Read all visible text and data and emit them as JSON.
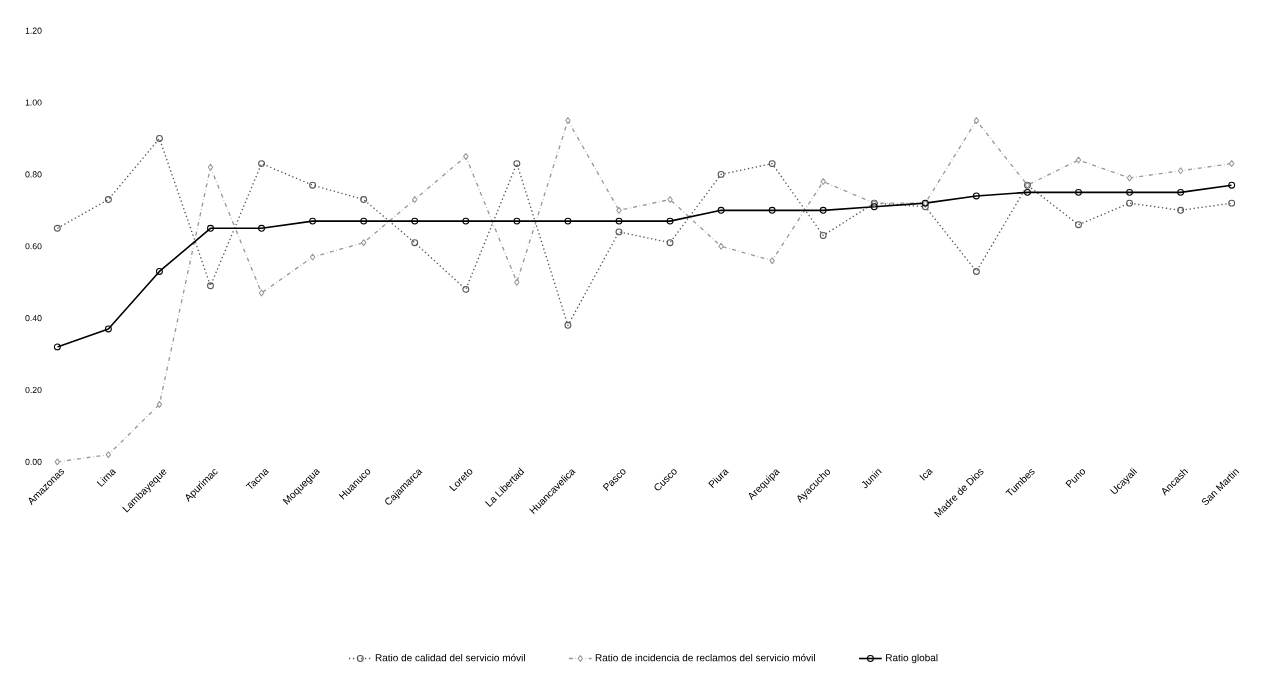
{
  "chart_data": {
    "type": "line",
    "categories": [
      "Amazonas",
      "Lima",
      "Lambayeque",
      "Apurimac",
      "Tacna",
      "Moquegua",
      "Huanuco",
      "Cajamarca",
      "Loreto",
      "La Libertad",
      "Huancavelica",
      "Pasco",
      "Cusco",
      "Piura",
      "Arequipa",
      "Ayacucho",
      "Junin",
      "Ica",
      "Madre de Dios",
      "Tumbes",
      "Puno",
      "Ucayali",
      "Ancash",
      "San Martin"
    ],
    "series": [
      {
        "name": "Ratio de calidad del servicio móvil",
        "color": "#555555",
        "line_style": "dotted",
        "marker": "circle",
        "values": [
          0.65,
          0.73,
          0.9,
          0.49,
          0.83,
          0.77,
          0.73,
          0.61,
          0.48,
          0.83,
          0.38,
          0.64,
          0.61,
          0.8,
          0.83,
          0.63,
          0.72,
          0.71,
          0.53,
          0.77,
          0.66,
          0.72,
          0.7,
          0.72
        ]
      },
      {
        "name": "Ratio de incidencia de reclamos del servicio móvil",
        "color": "#999999",
        "line_style": "dashed",
        "marker": "diamond",
        "values": [
          0.0,
          0.02,
          0.16,
          0.82,
          0.47,
          0.57,
          0.61,
          0.73,
          0.85,
          0.5,
          0.95,
          0.7,
          0.73,
          0.6,
          0.56,
          0.78,
          0.72,
          0.72,
          0.95,
          0.77,
          0.84,
          0.79,
          0.81,
          0.83
        ]
      },
      {
        "name": "Ratio global",
        "color": "#000000",
        "line_style": "solid",
        "marker": "circle",
        "values": [
          0.32,
          0.37,
          0.53,
          0.65,
          0.65,
          0.67,
          0.67,
          0.67,
          0.67,
          0.67,
          0.67,
          0.67,
          0.67,
          0.7,
          0.7,
          0.7,
          0.71,
          0.72,
          0.74,
          0.75,
          0.75,
          0.75,
          0.75,
          0.77
        ]
      }
    ],
    "ylim": [
      0,
      1.2
    ],
    "yticks": [
      {
        "value": 0,
        "label": "0.00"
      },
      {
        "value": 0.2,
        "label": "0.20"
      },
      {
        "value": 0.4,
        "label": "0.40"
      },
      {
        "value": 0.6,
        "label": "0.60"
      },
      {
        "value": 0.8,
        "label": "0.80"
      },
      {
        "value": 1.0,
        "label": "1.00"
      },
      {
        "value": 1.2,
        "label": "1.20"
      }
    ],
    "grid": false,
    "legend": "bottom"
  }
}
